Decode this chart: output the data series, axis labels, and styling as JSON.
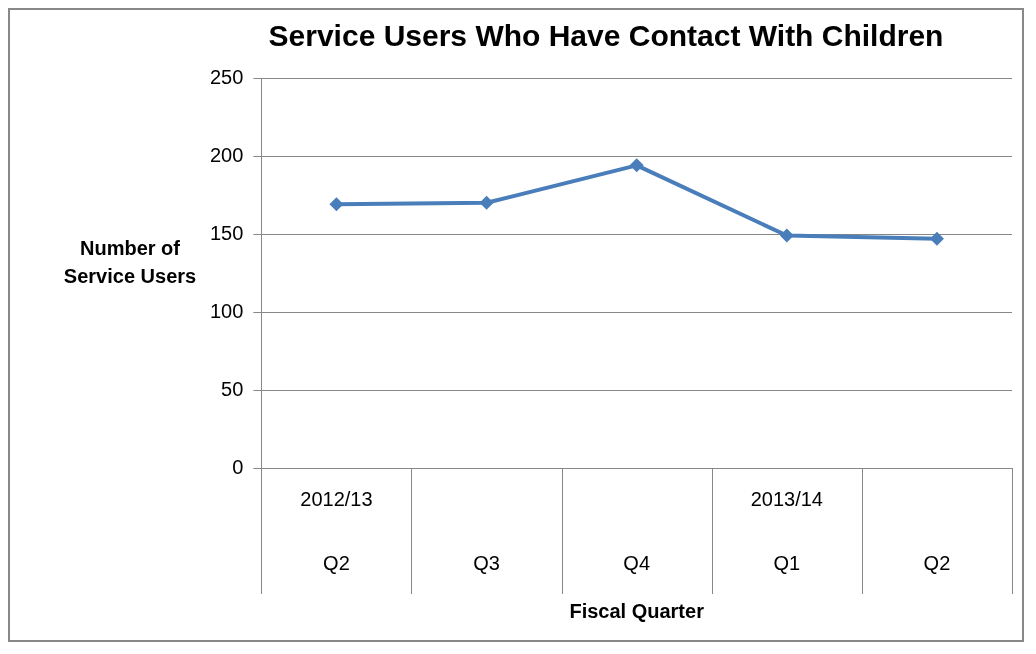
{
  "chart_data": {
    "type": "line",
    "title": "Service Users Who Have Contact With Children",
    "xlabel": "Fiscal Quarter",
    "ylabel": "Number of Service Users",
    "categories": [
      "2012/13\nQ2",
      "\nQ3",
      "\nQ4",
      "2013/14\nQ1",
      "\nQ2"
    ],
    "series": [
      {
        "color": "#4a7ebb",
        "values": [
          169,
          170,
          194,
          149,
          147
        ]
      }
    ],
    "ylim": [
      0,
      250
    ],
    "yticks": [
      0,
      50,
      100,
      150,
      200,
      250
    ],
    "grid": "y",
    "legend": false,
    "marker": "diamond",
    "line_style": "solid"
  }
}
